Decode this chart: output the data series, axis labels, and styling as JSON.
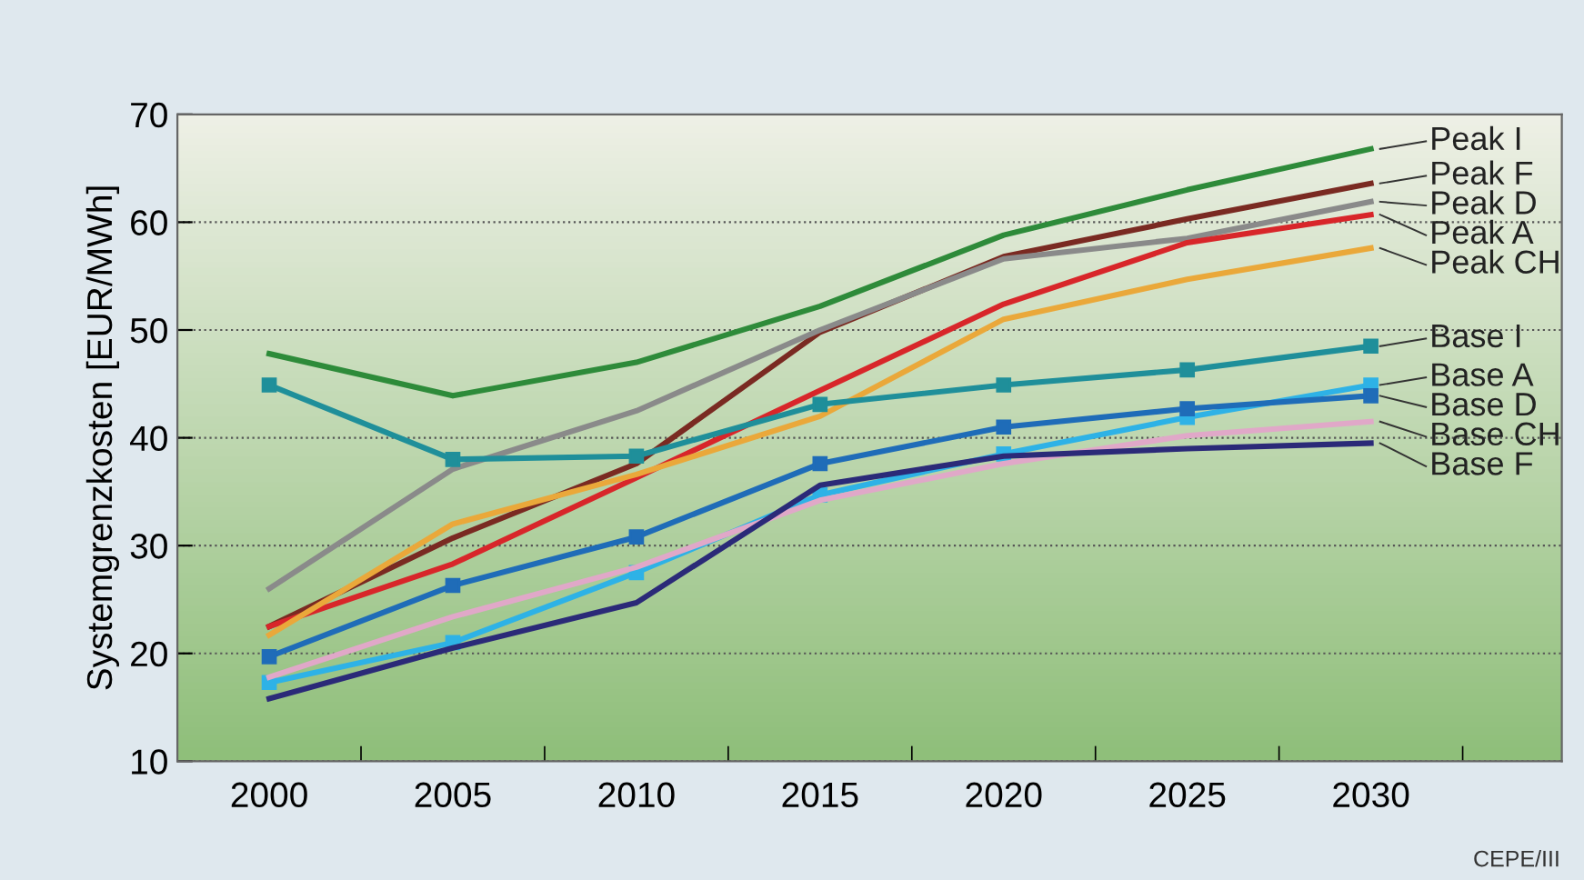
{
  "chart_data": {
    "type": "line",
    "ylabel": "Systemgrenzkosten [EUR/MWh]",
    "categories": [
      "2000",
      "2005",
      "2010",
      "2015",
      "2020",
      "2025",
      "2030"
    ],
    "ylim": [
      10,
      70
    ],
    "yticks": [
      10,
      20,
      30,
      40,
      50,
      60,
      70
    ],
    "grid": "y",
    "legend": false,
    "series": [
      {
        "name": "Peak I",
        "color": "#2e8b3a",
        "marker": "none",
        "values": [
          47.8,
          43.9,
          47,
          52.2,
          58.8,
          63,
          66.8
        ]
      },
      {
        "name": "Peak F",
        "color": "#7a2a22",
        "marker": "none",
        "values": [
          22.5,
          30.7,
          37.6,
          49.8,
          56.8,
          60.3,
          63.6
        ]
      },
      {
        "name": "Peak D",
        "color": "#8a8a8a",
        "marker": "none",
        "values": [
          26,
          37.1,
          42.5,
          50,
          56.6,
          58.5,
          61.9
        ]
      },
      {
        "name": "Peak A",
        "color": "#d8262a",
        "marker": "none",
        "values": [
          22.5,
          28.3,
          36.3,
          44.4,
          52.4,
          58.1,
          60.7
        ]
      },
      {
        "name": "Peak CH",
        "color": "#eaa83a",
        "marker": "none",
        "values": [
          21.7,
          32,
          36.6,
          42,
          51,
          54.7,
          57.6
        ]
      },
      {
        "name": "Base I",
        "color": "#1f8f9a",
        "marker": "square",
        "values": [
          44.9,
          38,
          38.3,
          43.1,
          44.9,
          46.3,
          48.5
        ]
      },
      {
        "name": "Base A",
        "color": "#2eb2e6",
        "marker": "square",
        "values": [
          17.3,
          21,
          27.5,
          34.7,
          38.5,
          41.9,
          44.9
        ]
      },
      {
        "name": "Base D",
        "color": "#1f6cb8",
        "marker": "square",
        "values": [
          19.7,
          26.3,
          30.8,
          37.6,
          41,
          42.7,
          43.9
        ]
      },
      {
        "name": "Base CH",
        "color": "#e0a8c8",
        "marker": "none",
        "values": [
          17.8,
          23.4,
          28,
          34.2,
          37.6,
          40.2,
          41.5
        ]
      },
      {
        "name": "Base F",
        "color": "#2b2a78",
        "marker": "none",
        "values": [
          15.8,
          20.5,
          24.7,
          35.6,
          38.3,
          39,
          39.5
        ]
      }
    ],
    "annotations": [
      "CEPE/III"
    ]
  }
}
